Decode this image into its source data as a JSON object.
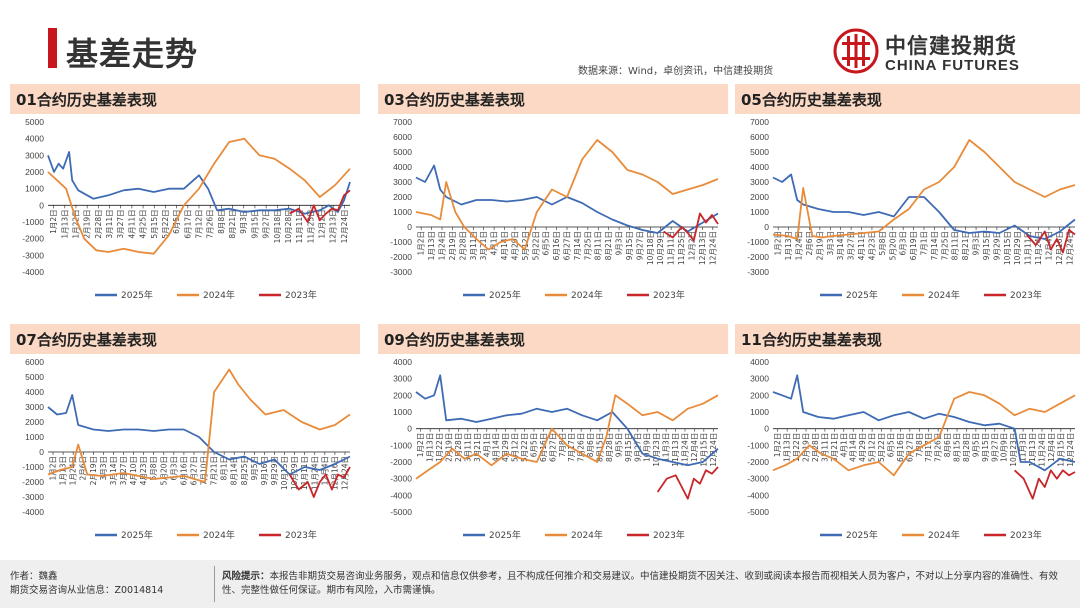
{
  "header": {
    "title": "基差走势",
    "source": "数据来源：Wind，卓创资讯，中信建投期货",
    "logo_cn": "中信建投期货",
    "logo_en": "CHINA FUTURES",
    "brand_color": "#c8161d"
  },
  "footer": {
    "author": "作者：魏鑫",
    "license": "期货交易咨询从业信息：Z0014814",
    "risk_label": "风险提示：",
    "risk_text": "本报告非期货交易咨询业务服务，观点和信息仅供参考，且不构成任何推介和交易建议。中信建投期货不因关注、收到或阅读本报告而视相关人员为客户，不对以上分享内容的准确性、有效性、完整性做任何保证。期市有风险，入市需谨慎。"
  },
  "series_colors": {
    "2025年": "#3e6bb4",
    "2024年": "#e88b3a",
    "2023年": "#c8262a"
  },
  "chart_data": [
    {
      "type": "line",
      "title": "01合约历史基差表现",
      "ylim": [
        -4000,
        5000
      ],
      "yticks": [
        5000,
        4000,
        3000,
        2000,
        1000,
        0,
        -1000,
        -2000,
        -3000,
        -4000
      ],
      "xlabels": [
        "1月2日",
        "1月13日",
        "1月22日",
        "2月19日",
        "2月28日",
        "3月11日",
        "3月27日",
        "4月11日",
        "4月25日",
        "5月15日",
        "5月22日",
        "6月5日",
        "6月17日",
        "7月12日",
        "7月26日",
        "8月8日",
        "8月21日",
        "9月3日",
        "9月15日",
        "9月27日",
        "10月18日",
        "10月28日",
        "11月11日",
        "11月25日",
        "12月2日",
        "12月13日",
        "12月24日"
      ],
      "legend": [
        "2025年",
        "2024年",
        "2023年"
      ],
      "series": [
        {
          "name": "2025年",
          "x": [
            0,
            0.02,
            0.035,
            0.05,
            0.07,
            0.08,
            0.1,
            0.15,
            0.2,
            0.25,
            0.3,
            0.35,
            0.4,
            0.45,
            0.5,
            0.53,
            0.56,
            0.6,
            0.65,
            0.7,
            0.75,
            0.8,
            0.85,
            0.9,
            0.93,
            0.96,
            0.98,
            1
          ],
          "values": [
            3000,
            2000,
            2500,
            2200,
            3200,
            1500,
            900,
            400,
            600,
            900,
            1000,
            800,
            1000,
            1000,
            1800,
            1000,
            -300,
            -200,
            -400,
            -300,
            -300,
            -200,
            -500,
            -300,
            0,
            -400,
            300,
            1400
          ]
        },
        {
          "name": "2024年",
          "x": [
            0,
            0.03,
            0.06,
            0.09,
            0.12,
            0.16,
            0.2,
            0.25,
            0.3,
            0.35,
            0.4,
            0.45,
            0.5,
            0.55,
            0.6,
            0.65,
            0.7,
            0.75,
            0.8,
            0.85,
            0.9,
            0.95,
            1
          ],
          "values": [
            2000,
            1500,
            1000,
            -700,
            -2000,
            -2700,
            -2800,
            -2600,
            -2800,
            -2900,
            -1800,
            0,
            1000,
            2500,
            3800,
            4000,
            3000,
            2800,
            2200,
            1500,
            500,
            1200,
            2200
          ]
        },
        {
          "name": "2023年",
          "x": [
            0.8,
            0.83,
            0.86,
            0.88,
            0.9,
            0.92,
            0.94,
            0.96,
            0.98,
            1
          ],
          "values": [
            -500,
            -200,
            -1000,
            0,
            -900,
            -500,
            -200,
            -300,
            600,
            900
          ]
        }
      ]
    },
    {
      "type": "line",
      "title": "03合约历史基差表现",
      "ylim": [
        -3000,
        7000
      ],
      "yticks": [
        7000,
        6000,
        5000,
        4000,
        3000,
        2000,
        1000,
        0,
        -1000,
        -2000,
        -3000
      ],
      "xlabels": [
        "1月2日",
        "1月13日",
        "1月24日",
        "2月19日",
        "2月28日",
        "3月11日",
        "3月21日",
        "4月1日",
        "4月14日",
        "4月29日",
        "5月12日",
        "5月22日",
        "6月5日",
        "6月16日",
        "6月27日",
        "7月14日",
        "7月25日",
        "8月11日",
        "8月21日",
        "9月3日",
        "9月15日",
        "9月27日",
        "10月18日",
        "10月29日",
        "11月11日",
        "11月25日",
        "12月2日",
        "12月13日",
        "12月24日"
      ],
      "legend": [
        "2025年",
        "2024年",
        "2023年"
      ],
      "series": [
        {
          "name": "2025年",
          "x": [
            0,
            0.03,
            0.06,
            0.08,
            0.1,
            0.15,
            0.2,
            0.25,
            0.3,
            0.35,
            0.4,
            0.45,
            0.5,
            0.55,
            0.6,
            0.65,
            0.7,
            0.75,
            0.8,
            0.85,
            0.9,
            0.95,
            1
          ],
          "values": [
            3300,
            3000,
            4100,
            2500,
            2000,
            1500,
            1800,
            1800,
            1700,
            1800,
            2000,
            1500,
            2000,
            1600,
            1000,
            500,
            100,
            -200,
            -400,
            400,
            -300,
            300,
            900
          ]
        },
        {
          "name": "2024年",
          "x": [
            0,
            0.05,
            0.08,
            0.1,
            0.13,
            0.16,
            0.2,
            0.24,
            0.28,
            0.32,
            0.36,
            0.4,
            0.45,
            0.5,
            0.55,
            0.6,
            0.65,
            0.7,
            0.75,
            0.8,
            0.85,
            0.9,
            0.95,
            1
          ],
          "values": [
            1000,
            800,
            500,
            3000,
            1000,
            0,
            -800,
            -1500,
            -1000,
            -800,
            -1500,
            1000,
            2500,
            2000,
            4500,
            5800,
            5000,
            3800,
            3500,
            3000,
            2200,
            2500,
            2800,
            3200
          ]
        },
        {
          "name": "2023年",
          "x": [
            0.82,
            0.85,
            0.88,
            0.9,
            0.92,
            0.94,
            0.96,
            0.98,
            1
          ],
          "values": [
            -300,
            -700,
            0,
            -400,
            -900,
            900,
            300,
            800,
            200
          ]
        }
      ]
    },
    {
      "type": "line",
      "title": "05合约历史基差表现",
      "ylim": [
        -3000,
        7000
      ],
      "yticks": [
        7000,
        6000,
        5000,
        4000,
        3000,
        2000,
        1000,
        0,
        -1000,
        -2000,
        -3000
      ],
      "xlabels": [
        "1月2日",
        "1月13日",
        "1月24日",
        "2月6日",
        "2月19日",
        "3月3日",
        "3月14日",
        "3月27日",
        "4月11日",
        "4月23日",
        "5月8日",
        "5月20日",
        "6月3日",
        "6月19日",
        "7月1日",
        "7月14日",
        "7月25日",
        "8月11日",
        "8月21日",
        "9月3日",
        "9月15日",
        "9月29日",
        "10月15日",
        "10月29日",
        "11月11日",
        "11月24日",
        "12月4日",
        "12月16日",
        "12月24日"
      ],
      "legend": [
        "2025年",
        "2024年",
        "2023年"
      ],
      "series": [
        {
          "name": "2025年",
          "x": [
            0,
            0.03,
            0.06,
            0.08,
            0.1,
            0.15,
            0.2,
            0.25,
            0.3,
            0.35,
            0.4,
            0.45,
            0.5,
            0.55,
            0.6,
            0.65,
            0.7,
            0.75,
            0.8,
            0.85,
            0.9,
            0.95,
            1
          ],
          "values": [
            3300,
            3000,
            3500,
            1800,
            1500,
            1200,
            1000,
            1000,
            800,
            1000,
            700,
            2000,
            2000,
            1000,
            -200,
            -400,
            -300,
            -400,
            100,
            -600,
            -800,
            -300,
            500
          ]
        },
        {
          "name": "2024年",
          "x": [
            0,
            0.05,
            0.08,
            0.1,
            0.13,
            0.16,
            0.2,
            0.25,
            0.3,
            0.35,
            0.4,
            0.45,
            0.5,
            0.55,
            0.6,
            0.65,
            0.7,
            0.75,
            0.8,
            0.85,
            0.9,
            0.95,
            1
          ],
          "values": [
            -500,
            -600,
            -800,
            2600,
            -600,
            -700,
            -600,
            -500,
            -400,
            -300,
            500,
            1200,
            2500,
            3000,
            4000,
            5800,
            5000,
            4000,
            3000,
            2500,
            2000,
            2500,
            2800
          ]
        },
        {
          "name": "2023年",
          "x": [
            0.84,
            0.87,
            0.9,
            0.92,
            0.94,
            0.96,
            0.98,
            1
          ],
          "values": [
            -500,
            -1200,
            -300,
            -1500,
            -800,
            -1700,
            -200,
            -500
          ]
        }
      ]
    },
    {
      "type": "line",
      "title": "07合约历史基差表现",
      "ylim": [
        -4000,
        6000
      ],
      "yticks": [
        6000,
        5000,
        4000,
        3000,
        2000,
        1000,
        0,
        -1000,
        -2000,
        -3000,
        -4000
      ],
      "xlabels": [
        "1月2日",
        "1月13日",
        "1月24日",
        "2月6日",
        "2月19日",
        "3月3日",
        "3月14日",
        "3月27日",
        "4月10日",
        "4月23日",
        "5月8日",
        "5月20日",
        "6月3日",
        "6月16日",
        "6月27日",
        "7月10日",
        "7月21日",
        "8月1日",
        "8月14日",
        "8月25日",
        "9月5日",
        "9月16日",
        "9月29日",
        "10月15日",
        "10月29日",
        "11月11日",
        "11月24日",
        "12月4日",
        "12月16日",
        "12月24日"
      ],
      "legend": [
        "2025年",
        "2024年",
        "2023年"
      ],
      "series": [
        {
          "name": "2025年",
          "x": [
            0,
            0.03,
            0.06,
            0.08,
            0.1,
            0.15,
            0.2,
            0.25,
            0.3,
            0.35,
            0.4,
            0.45,
            0.5,
            0.55,
            0.6,
            0.65,
            0.7,
            0.75,
            0.8,
            0.85,
            0.9,
            0.95,
            1
          ],
          "values": [
            3000,
            2500,
            2600,
            3800,
            1800,
            1500,
            1400,
            1500,
            1500,
            1400,
            1500,
            1500,
            1000,
            0,
            -500,
            -300,
            -800,
            -500,
            -1500,
            -1000,
            -1200,
            -800,
            -300
          ]
        },
        {
          "name": "2024年",
          "x": [
            0,
            0.04,
            0.08,
            0.1,
            0.13,
            0.18,
            0.25,
            0.35,
            0.45,
            0.52,
            0.55,
            0.6,
            0.63,
            0.67,
            0.72,
            0.78,
            0.84,
            0.9,
            0.95,
            1
          ],
          "values": [
            -1500,
            -1200,
            -1000,
            500,
            -1500,
            -1600,
            -1400,
            -1800,
            -1600,
            -2000,
            4000,
            5500,
            4500,
            3500,
            2500,
            2800,
            2000,
            1500,
            1800,
            2500
          ]
        },
        {
          "name": "2023年",
          "x": [
            0.8,
            0.83,
            0.86,
            0.88,
            0.9,
            0.92,
            0.94,
            0.96,
            0.98,
            1
          ],
          "values": [
            -1500,
            -2500,
            -2000,
            -3000,
            -2000,
            -1500,
            -2500,
            -1500,
            -1700,
            -1000
          ]
        }
      ]
    },
    {
      "type": "line",
      "title": "09合约历史基差表现",
      "ylim": [
        -5000,
        4000
      ],
      "yticks": [
        4000,
        3000,
        2000,
        1000,
        0,
        -1000,
        -2000,
        -3000,
        -4000,
        -5000
      ],
      "xlabels": [
        "1月2日",
        "1月13日",
        "1月22日",
        "2月19日",
        "2月28日",
        "3月11日",
        "3月21日",
        "4月1日",
        "4月14日",
        "4月29日",
        "5月12日",
        "5月22日",
        "6月5日",
        "6月16日",
        "6月27日",
        "7月8日",
        "7月17日",
        "7月26日",
        "8月6日",
        "8月15日",
        "8月28日",
        "9月5日",
        "9月15日",
        "9月27日",
        "10月9日",
        "10月23日",
        "11月3日",
        "11月13日",
        "11月24日",
        "12月4日",
        "12月15日",
        "12月24日"
      ],
      "legend": [
        "2025年",
        "2024年",
        "2023年"
      ],
      "series": [
        {
          "name": "2025年",
          "x": [
            0,
            0.03,
            0.06,
            0.08,
            0.1,
            0.15,
            0.2,
            0.25,
            0.3,
            0.35,
            0.4,
            0.45,
            0.5,
            0.55,
            0.6,
            0.65,
            0.7,
            0.75,
            0.8,
            0.85,
            0.9,
            0.95,
            1
          ],
          "values": [
            2200,
            1800,
            2000,
            3200,
            500,
            600,
            400,
            600,
            800,
            900,
            1200,
            1000,
            1200,
            800,
            500,
            1000,
            0,
            -1500,
            -1800,
            -2000,
            -2200,
            -2000,
            -1200
          ]
        },
        {
          "name": "2024年",
          "x": [
            0,
            0.04,
            0.08,
            0.12,
            0.16,
            0.2,
            0.25,
            0.3,
            0.35,
            0.4,
            0.45,
            0.5,
            0.55,
            0.6,
            0.63,
            0.66,
            0.7,
            0.75,
            0.8,
            0.85,
            0.9,
            0.95,
            1
          ],
          "values": [
            -3000,
            -2500,
            -2000,
            -1200,
            -1800,
            -1500,
            -2200,
            -1500,
            -1800,
            -2000,
            0,
            -1000,
            -1500,
            -2000,
            -500,
            2000,
            1500,
            800,
            1000,
            500,
            1200,
            1500,
            2000
          ]
        },
        {
          "name": "2023年",
          "x": [
            0.8,
            0.83,
            0.86,
            0.88,
            0.9,
            0.92,
            0.94,
            0.96,
            0.98,
            1
          ],
          "values": [
            -3800,
            -3000,
            -2800,
            -3500,
            -4200,
            -3000,
            -3300,
            -2500,
            -2700,
            -2300
          ]
        }
      ]
    },
    {
      "type": "line",
      "title": "11合约历史基差表现",
      "ylim": [
        -5000,
        4000
      ],
      "yticks": [
        4000,
        3000,
        2000,
        1000,
        0,
        -1000,
        -2000,
        -3000,
        -4000,
        -5000
      ],
      "xlabels": [
        "1月2日",
        "1月13日",
        "1月22日",
        "2月19日",
        "2月28日",
        "3月11日",
        "3月21日",
        "4月1日",
        "4月14日",
        "4月29日",
        "5月12日",
        "5月22日",
        "6月5日",
        "6月16日",
        "6月27日",
        "7月8日",
        "7月17日",
        "7月26日",
        "8月6日",
        "8月15日",
        "8月28日",
        "9月5日",
        "9月15日",
        "9月27日",
        "10月9日",
        "10月23日",
        "11月3日",
        "11月13日",
        "11月24日",
        "12月4日",
        "12月15日",
        "12月24日"
      ],
      "legend": [
        "2025年",
        "2024年",
        "2023年"
      ],
      "series": [
        {
          "name": "2025年",
          "x": [
            0,
            0.03,
            0.06,
            0.08,
            0.1,
            0.15,
            0.2,
            0.25,
            0.3,
            0.35,
            0.4,
            0.45,
            0.5,
            0.55,
            0.6,
            0.65,
            0.7,
            0.75,
            0.8,
            0.82,
            0.85,
            0.9,
            0.95,
            1
          ],
          "values": [
            2200,
            2000,
            1800,
            3200,
            1000,
            700,
            600,
            800,
            1000,
            500,
            800,
            1000,
            600,
            900,
            700,
            400,
            200,
            300,
            0,
            -2000,
            -2000,
            -2500,
            -1800,
            -2000
          ]
        },
        {
          "name": "2024年",
          "x": [
            0,
            0.04,
            0.08,
            0.12,
            0.16,
            0.2,
            0.25,
            0.3,
            0.35,
            0.4,
            0.45,
            0.5,
            0.55,
            0.6,
            0.65,
            0.7,
            0.75,
            0.8,
            0.85,
            0.9,
            0.95,
            1
          ],
          "values": [
            -2500,
            -2200,
            -1800,
            -1000,
            -1500,
            -1800,
            -2500,
            -2200,
            -2000,
            -2800,
            -1500,
            -1000,
            -500,
            1800,
            2200,
            2000,
            1500,
            800,
            1200,
            1000,
            1500,
            2000
          ]
        },
        {
          "name": "2023年",
          "x": [
            0.8,
            0.83,
            0.86,
            0.88,
            0.9,
            0.92,
            0.94,
            0.96,
            0.98,
            1
          ],
          "values": [
            -2500,
            -3000,
            -4200,
            -3000,
            -3500,
            -2500,
            -3000,
            -2500,
            -2800,
            -2600
          ]
        }
      ]
    }
  ]
}
